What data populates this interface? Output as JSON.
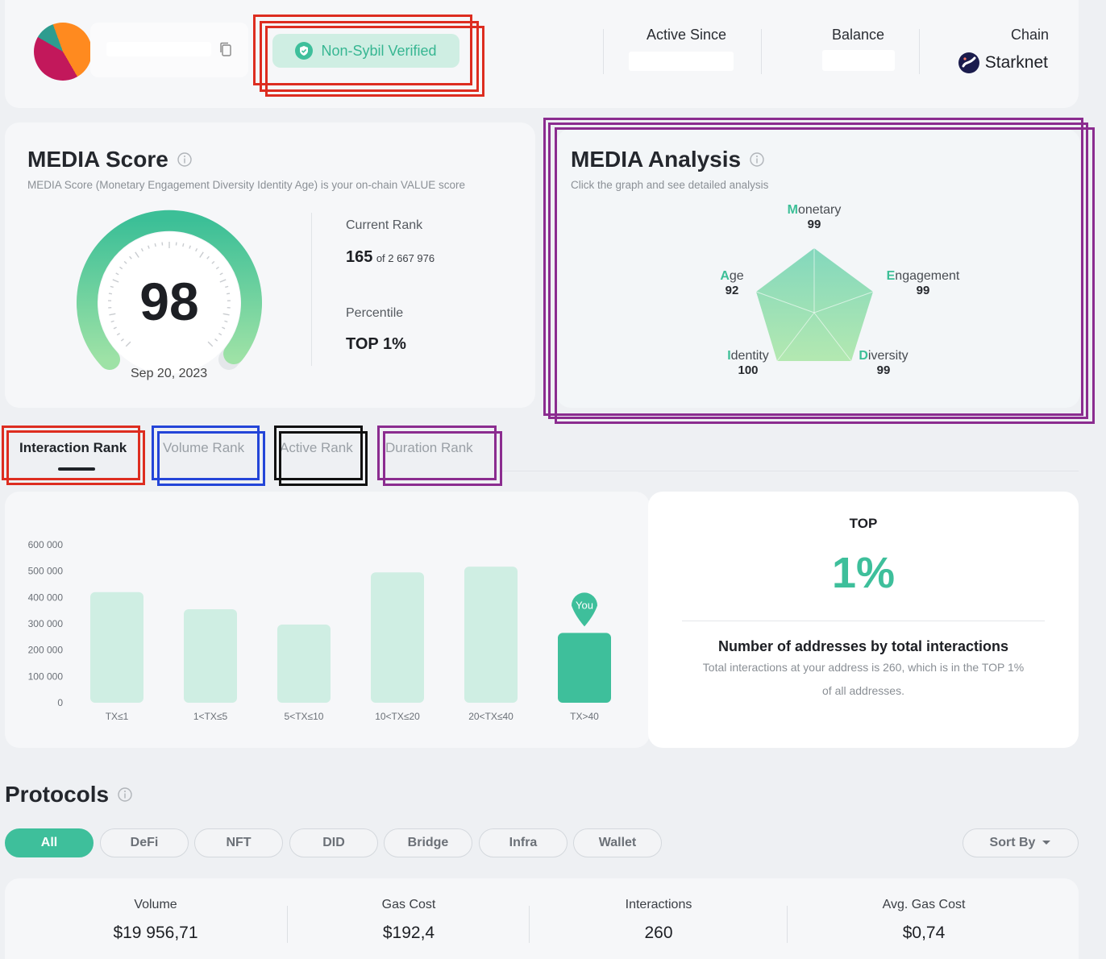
{
  "header": {
    "verified_label": "Non-Sybil Verified",
    "active_since_label": "Active Since",
    "balance_label": "Balance",
    "chain_label": "Chain",
    "chain_value": "Starknet"
  },
  "media_score": {
    "title": "MEDIA Score",
    "subtitle": "MEDIA Score (Monetary Engagement Diversity Identity Age) is your on-chain VALUE score",
    "score": "98",
    "score_fraction": 0.98,
    "date": "Sep 20, 2023",
    "current_rank_label": "Current Rank",
    "rank_value": "165",
    "rank_total": "of 2 667 976",
    "percentile_label": "Percentile",
    "percentile_value": "TOP 1%"
  },
  "media_analysis": {
    "title": "MEDIA Analysis",
    "subtitle": "Click the graph and see detailed analysis",
    "axes": [
      {
        "first": "M",
        "rest": "onetary",
        "value": "99"
      },
      {
        "first": "E",
        "rest": "ngagement",
        "value": "99"
      },
      {
        "first": "D",
        "rest": "iversity",
        "value": "99"
      },
      {
        "first": "I",
        "rest": "dentity",
        "value": "100"
      },
      {
        "first": "A",
        "rest": "ge",
        "value": "92"
      }
    ]
  },
  "tabs": [
    {
      "label": "Interaction Rank",
      "active": true
    },
    {
      "label": "Volume Rank",
      "active": false
    },
    {
      "label": "Active Rank",
      "active": false
    },
    {
      "label": "Duration Rank",
      "active": false
    }
  ],
  "chart_data": {
    "type": "bar",
    "categories": [
      "TX≤1",
      "1<TX≤5",
      "5<TX≤10",
      "10<TX≤20",
      "20<TX≤40",
      "TX>40"
    ],
    "values": [
      420000,
      355000,
      297000,
      495000,
      517000,
      265000
    ],
    "ylim": [
      0,
      600000
    ],
    "yticks": [
      "0",
      "100 000",
      "200 000",
      "300 000",
      "400 000",
      "500 000",
      "600 000"
    ],
    "highlight_index": 5,
    "highlight_label": "You",
    "colors": {
      "bar": "#cfeee3",
      "highlight": "#3ebf9b"
    }
  },
  "top_panel": {
    "top_label": "TOP",
    "percent": "1%",
    "heading": "Number of addresses by total interactions",
    "desc_line1": "Total interactions at your address is 260, which is in the TOP 1%",
    "desc_line2": "of all addresses."
  },
  "protocols": {
    "title": "Protocols",
    "filters": [
      "All",
      "DeFi",
      "NFT",
      "DID",
      "Bridge",
      "Infra",
      "Wallet"
    ],
    "sort_label": "Sort By",
    "stats": [
      {
        "label": "Volume",
        "value": "$19 956,71"
      },
      {
        "label": "Gas Cost",
        "value": "$192,4"
      },
      {
        "label": "Interactions",
        "value": "260"
      },
      {
        "label": "Avg. Gas Cost",
        "value": "$0,74"
      }
    ]
  },
  "colors": {
    "accent": "#3ebf9b",
    "annotation_red": "#dd2d20",
    "annotation_purple": "#8b2c8f",
    "annotation_blue": "#2445d8"
  }
}
